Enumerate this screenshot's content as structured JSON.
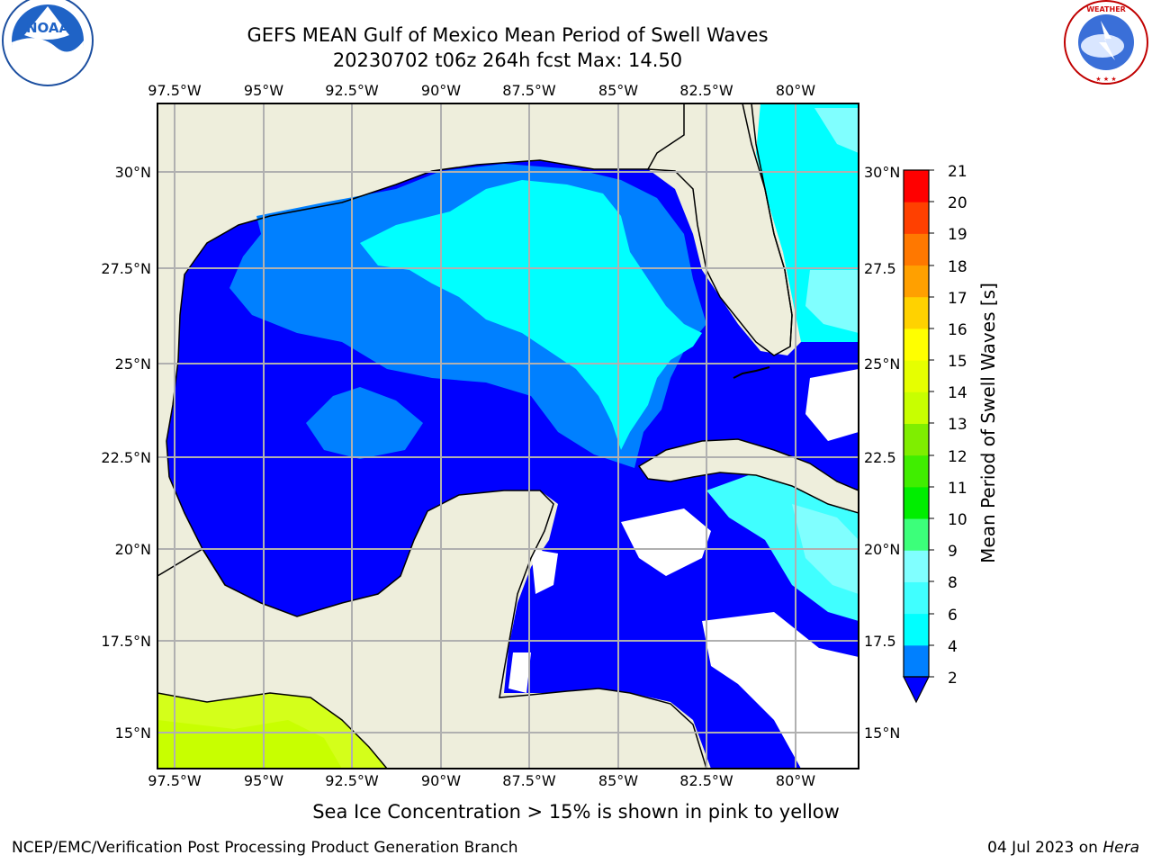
{
  "title": "GEFS MEAN Gulf of Mexico Mean Period of Swell Waves",
  "subtitle": "20230702 t06z 264h fcst   Max: 14.50",
  "footer_note": "Sea Ice Concentration > 15% is shown in pink to yellow",
  "credit": "NCEP/EMC/Verification Post Processing Product Generation Branch",
  "date_prefix": "04 Jul 2023 on ",
  "date_host": "Hera",
  "logos": {
    "left": "NOAA",
    "right": "NATIONAL WEATHER SERVICE"
  },
  "map": {
    "lon_labels": [
      "97.5°W",
      "95°W",
      "92.5°W",
      "90°W",
      "87.5°W",
      "85°W",
      "82.5°W",
      "80°W"
    ],
    "lat_labels_left": [
      "30°N",
      "27.5°N",
      "25°N",
      "22.5°N",
      "20°N",
      "17.5°N",
      "15°N"
    ],
    "lat_labels_right": [
      "30°N",
      "27.5",
      "25°N",
      "22.5",
      "20°N",
      "17.5",
      "15°N"
    ],
    "colors": {
      "land": "#eeeedc",
      "grid": "#b0b0b0"
    }
  },
  "colorbar": {
    "label": "Mean Period of Swell Waves [s]",
    "ticks": [
      "21",
      "20",
      "19",
      "18",
      "17",
      "16",
      "15",
      "14",
      "13",
      "12",
      "11",
      "10",
      "9",
      "8",
      "6",
      "4",
      "2"
    ],
    "colors": [
      "#0000ff",
      "#0080ff",
      "#00ffff",
      "#40ffff",
      "#80ffff",
      "#3cff7a",
      "#00ee00",
      "#40ee00",
      "#7fee00",
      "#c8ff00",
      "#e6ff00",
      "#ffff00",
      "#ffd200",
      "#ffa000",
      "#ff7800",
      "#ff4000",
      "#ff0000"
    ],
    "extend": "min"
  }
}
